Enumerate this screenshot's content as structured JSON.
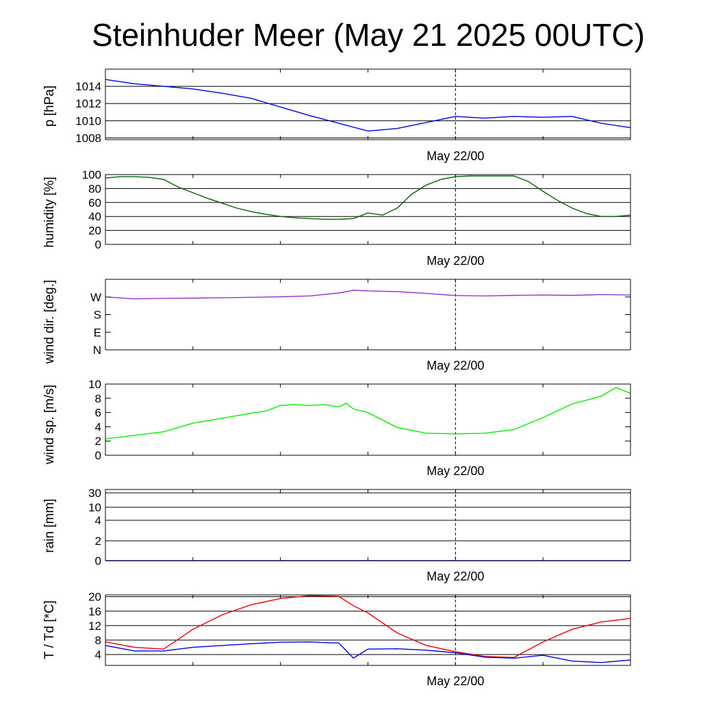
{
  "title": "Steinhuder Meer (May 21 2025 00UTC)",
  "colors": {
    "pressure": "#0000ee",
    "humidity": "#006400",
    "wind_dir": "#9932cc",
    "wind_speed": "#00ee00",
    "rain": "#0000ee",
    "temperature": "#ee0000",
    "dewpoint": "#0000ee"
  },
  "chart_data": [
    {
      "type": "line",
      "ylabel": "p [hPa]",
      "x_tick_label": "May 22/00",
      "yticks": [
        "1008",
        "1010",
        "1012",
        "1014"
      ],
      "ylim": [
        1007.8,
        1016
      ],
      "grid": true,
      "x_hours": [
        0,
        2,
        4,
        6,
        8,
        10,
        12,
        14,
        16,
        18,
        20,
        22,
        24,
        26,
        28,
        30,
        32,
        34,
        36
      ],
      "series": [
        {
          "values": [
            1014.8,
            1014.3,
            1014.0,
            1013.7,
            1013.2,
            1012.6,
            1011.6,
            1010.6,
            1009.7,
            1008.8,
            1009.1,
            1009.8,
            1010.5,
            1010.3,
            1010.5,
            1010.4,
            1010.5,
            1009.7,
            1009.2
          ]
        }
      ]
    },
    {
      "type": "line",
      "ylabel": "humidity [%]",
      "x_tick_label": "May 22/00",
      "yticks": [
        "0",
        "20",
        "40",
        "60",
        "80",
        "100"
      ],
      "ylim": [
        0,
        100
      ],
      "grid": true,
      "x_hours": [
        0,
        1,
        2,
        3,
        4,
        5,
        6,
        7,
        8,
        9,
        10,
        11,
        12,
        13,
        14,
        15,
        16,
        17,
        18,
        19,
        20,
        21,
        22,
        23,
        24,
        25,
        26,
        27,
        28,
        29,
        30,
        31,
        32,
        33,
        34,
        35,
        36
      ],
      "series": [
        {
          "values": [
            95,
            97,
            97,
            96,
            93,
            82,
            74,
            66,
            59,
            52,
            47,
            43,
            40,
            38,
            37,
            36,
            36,
            37,
            45,
            42,
            52,
            72,
            85,
            93,
            97,
            98,
            98,
            98,
            98,
            90,
            76,
            63,
            52,
            44,
            40,
            40,
            42
          ]
        }
      ]
    },
    {
      "type": "line",
      "ylabel": "wind dir. [deg.]",
      "x_tick_label": "May 22/00",
      "yticks": [
        "N",
        "E",
        "S",
        "W"
      ],
      "ylim": [
        0,
        360
      ],
      "grid": false,
      "x_hours": [
        0,
        2,
        4,
        6,
        8,
        10,
        12,
        14,
        16,
        17,
        18,
        20,
        22,
        24,
        26,
        28,
        30,
        32,
        34,
        36
      ],
      "series": [
        {
          "values": [
            270,
            260,
            263,
            264,
            266,
            268,
            271,
            275,
            290,
            304,
            301,
            297,
            288,
            277,
            275,
            278,
            280,
            278,
            282,
            280
          ]
        }
      ]
    },
    {
      "type": "line",
      "ylabel": "wind sp. [m/s]",
      "x_tick_label": "May 22/00",
      "yticks": [
        "0",
        "2",
        "4",
        "6",
        "8",
        "10"
      ],
      "ylim": [
        0,
        10
      ],
      "grid": false,
      "x_hours": [
        0,
        2,
        4,
        6,
        8,
        10,
        11,
        12,
        13,
        14,
        15,
        16,
        16.5,
        17,
        18,
        20,
        22,
        24,
        26,
        28,
        30,
        32,
        34,
        35,
        36
      ],
      "series": [
        {
          "values": [
            2.3,
            2.8,
            3.3,
            4.5,
            5.2,
            5.9,
            6.2,
            7.0,
            7.1,
            7.0,
            7.1,
            6.8,
            7.3,
            6.5,
            6.0,
            3.9,
            3.1,
            3.0,
            3.1,
            3.6,
            5.3,
            7.2,
            8.3,
            9.5,
            8.7
          ]
        }
      ]
    },
    {
      "type": "line",
      "ylabel": "rain [mm]",
      "x_tick_label": "May 22/00",
      "yticks": [
        "0",
        "2",
        "4",
        "10",
        "30"
      ],
      "ylim": [
        0,
        30
      ],
      "grid": true,
      "x_hours": [
        0,
        36
      ],
      "series": [
        {
          "values": [
            0,
            0
          ]
        }
      ]
    },
    {
      "type": "line",
      "ylabel": "T / Td [*C]",
      "x_tick_label": "May 22/00",
      "yticks": [
        "4",
        "8",
        "12",
        "16",
        "20"
      ],
      "ylim": [
        1,
        20.5
      ],
      "grid": true,
      "x_hours": [
        0,
        2,
        4,
        6,
        8,
        10,
        12,
        14,
        15,
        16,
        17,
        18,
        20,
        22,
        24,
        26,
        28,
        30,
        32,
        34,
        36
      ],
      "series": [
        {
          "name": "T",
          "values": [
            7.5,
            6.0,
            5.5,
            11.0,
            15.0,
            17.8,
            19.5,
            20.3,
            20.2,
            20.1,
            17.5,
            15.5,
            10.0,
            6.5,
            4.8,
            3.5,
            3.2,
            7.5,
            11.0,
            13.0,
            14.0
          ]
        },
        {
          "name": "Td",
          "values": [
            6.5,
            5.0,
            5.0,
            6.0,
            6.5,
            7.0,
            7.4,
            7.5,
            7.3,
            7.2,
            3.0,
            5.5,
            5.6,
            5.2,
            4.5,
            3.3,
            3.0,
            3.8,
            2.2,
            1.8,
            2.5
          ]
        }
      ]
    }
  ]
}
